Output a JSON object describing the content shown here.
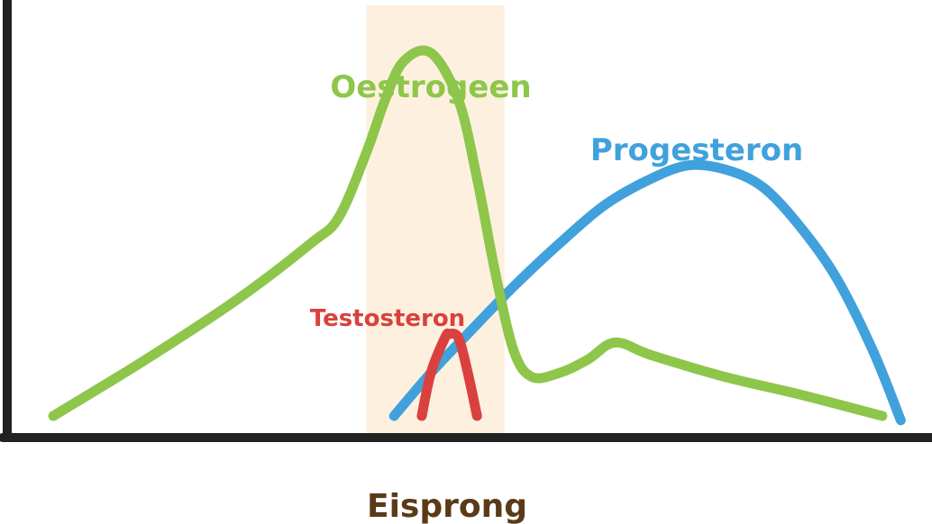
{
  "chart_data": {
    "type": "line",
    "title": "",
    "xlabel": "Eisprong",
    "ylabel": "",
    "grid": false,
    "legend": "none",
    "highlight_band": {
      "x_range": [
        0.39,
        0.54
      ],
      "color": "#fdf0df"
    },
    "axis_color": "#222222",
    "xlabel_color": "#5a3a17",
    "series": [
      {
        "name": "Oestrogeen",
        "color": "#8dc64a",
        "points": [
          [
            0.05,
            0.05
          ],
          [
            0.15,
            0.18
          ],
          [
            0.25,
            0.32
          ],
          [
            0.33,
            0.45
          ],
          [
            0.36,
            0.51
          ],
          [
            0.39,
            0.66
          ],
          [
            0.41,
            0.78
          ],
          [
            0.43,
            0.87
          ],
          [
            0.46,
            0.89
          ],
          [
            0.49,
            0.78
          ],
          [
            0.51,
            0.6
          ],
          [
            0.53,
            0.38
          ],
          [
            0.55,
            0.2
          ],
          [
            0.57,
            0.14
          ],
          [
            0.6,
            0.15
          ],
          [
            0.63,
            0.18
          ],
          [
            0.66,
            0.22
          ],
          [
            0.7,
            0.19
          ],
          [
            0.78,
            0.14
          ],
          [
            0.86,
            0.1
          ],
          [
            0.95,
            0.05
          ]
        ]
      },
      {
        "name": "Progesteron",
        "color": "#41a1dc",
        "points": [
          [
            0.42,
            0.05
          ],
          [
            0.46,
            0.15
          ],
          [
            0.5,
            0.24
          ],
          [
            0.55,
            0.35
          ],
          [
            0.6,
            0.45
          ],
          [
            0.65,
            0.54
          ],
          [
            0.7,
            0.6
          ],
          [
            0.74,
            0.63
          ],
          [
            0.78,
            0.62
          ],
          [
            0.82,
            0.58
          ],
          [
            0.86,
            0.49
          ],
          [
            0.9,
            0.37
          ],
          [
            0.94,
            0.2
          ],
          [
            0.97,
            0.04
          ]
        ]
      },
      {
        "name": "Testosteron",
        "color": "#d9413f",
        "points": [
          [
            0.45,
            0.05
          ],
          [
            0.46,
            0.15
          ],
          [
            0.475,
            0.23
          ],
          [
            0.48,
            0.24
          ],
          [
            0.49,
            0.23
          ],
          [
            0.5,
            0.15
          ],
          [
            0.51,
            0.05
          ]
        ]
      }
    ]
  }
}
